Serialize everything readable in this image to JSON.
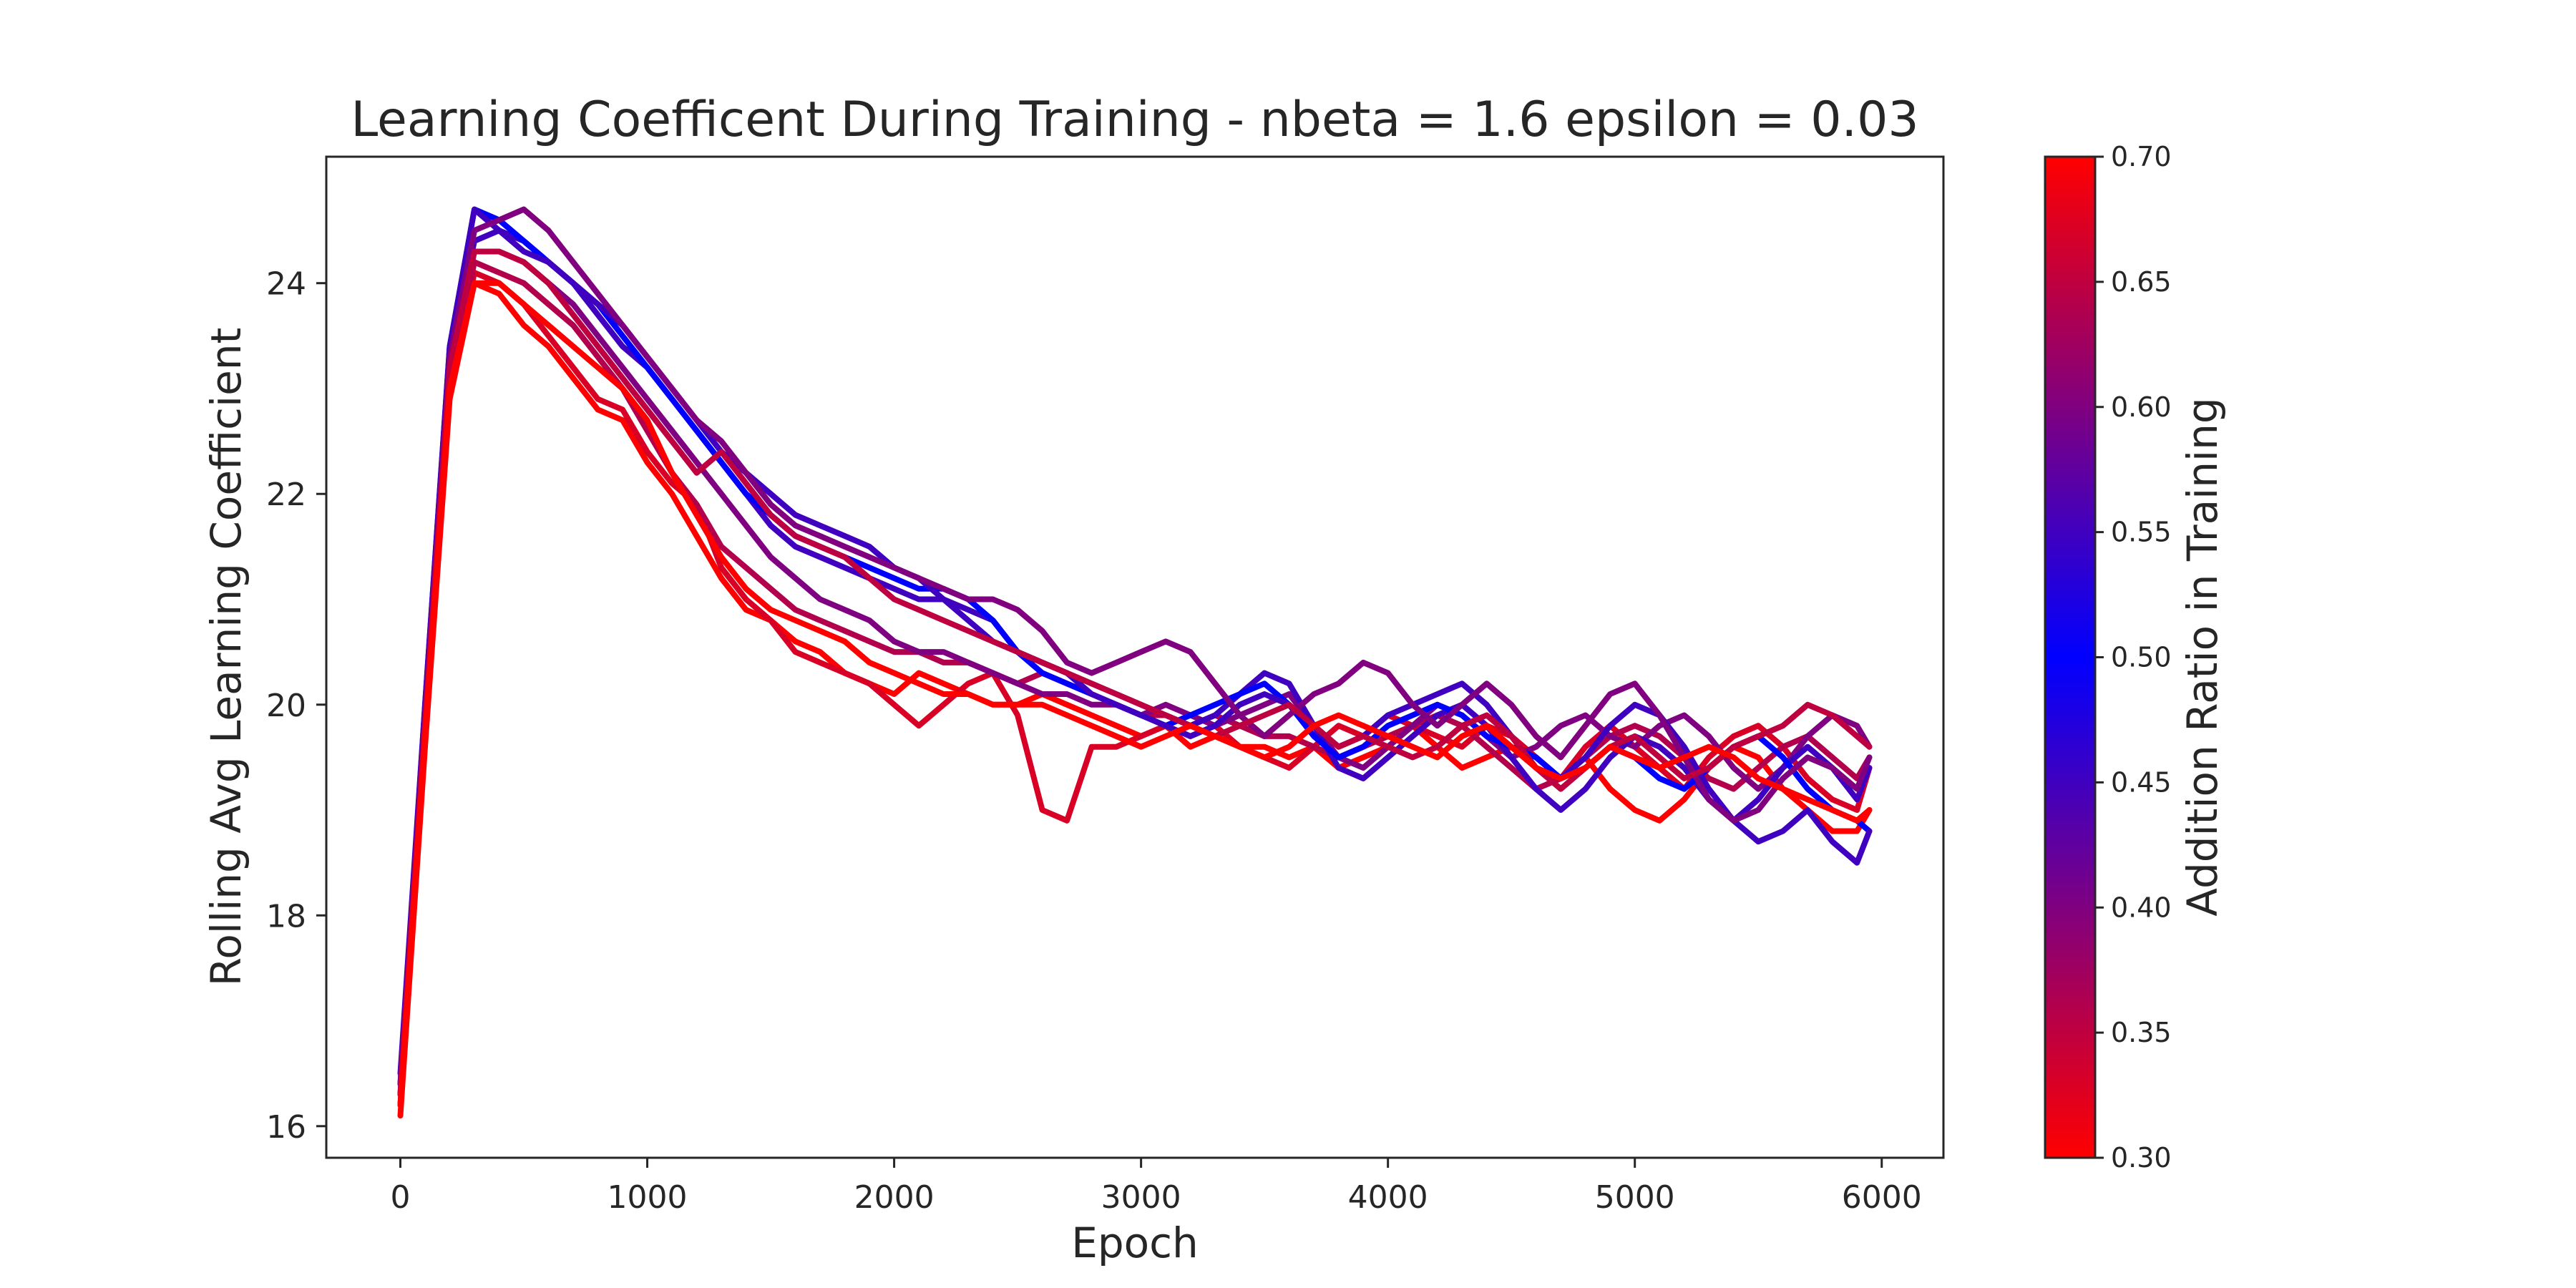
{
  "chart_data": {
    "type": "line",
    "title": "Learning Coefficent During Training - nbeta = 1.6 epsilon = 0.03",
    "xlabel": "Epoch",
    "ylabel": "Rolling Avg Learning Coefficient",
    "xlim": [
      -300,
      6250
    ],
    "ylim": [
      15.7,
      25.2
    ],
    "xticks": [
      0,
      1000,
      2000,
      3000,
      4000,
      5000,
      6000
    ],
    "yticks": [
      16,
      18,
      20,
      22,
      24
    ],
    "grid": false,
    "legend": "none",
    "colorbar": {
      "label": "Addition Ratio in Training",
      "range": [
        0.3,
        0.7
      ],
      "ticks": [
        "0.30",
        "0.35",
        "0.40",
        "0.45",
        "0.50",
        "0.55",
        "0.60",
        "0.65",
        "0.70"
      ],
      "colors": [
        "#ff0000",
        "#0000ff",
        "#ff0000"
      ]
    },
    "x": [
      0,
      100,
      200,
      300,
      400,
      500,
      600,
      700,
      800,
      900,
      1000,
      1100,
      1200,
      1300,
      1400,
      1500,
      1600,
      1700,
      1800,
      1900,
      2000,
      2100,
      2200,
      2300,
      2400,
      2500,
      2600,
      2700,
      2800,
      2900,
      3000,
      3100,
      3200,
      3300,
      3400,
      3500,
      3600,
      3700,
      3800,
      3900,
      4000,
      4100,
      4200,
      4300,
      4400,
      4500,
      4600,
      4700,
      4800,
      4900,
      5000,
      5100,
      5200,
      5300,
      5400,
      5500,
      5600,
      5700,
      5800,
      5900,
      5950
    ],
    "series": [
      {
        "ratio": 0.3,
        "values": [
          16.1,
          19.6,
          22.9,
          24.0,
          23.9,
          23.6,
          23.4,
          23.1,
          22.8,
          22.7,
          22.3,
          22.0,
          21.6,
          21.2,
          20.9,
          20.8,
          20.6,
          20.5,
          20.3,
          20.2,
          20.1,
          20.3,
          20.2,
          20.1,
          20.0,
          20.0,
          20.1,
          20.0,
          19.9,
          19.8,
          19.7,
          19.8,
          19.6,
          19.7,
          19.6,
          19.6,
          19.5,
          19.6,
          19.4,
          19.5,
          19.6,
          19.8,
          19.6,
          19.4,
          19.5,
          19.6,
          19.4,
          19.3,
          19.5,
          19.2,
          19.0,
          18.9,
          19.1,
          19.4,
          19.6,
          19.5,
          19.2,
          19.0,
          18.8,
          18.8,
          19.0
        ]
      },
      {
        "ratio": 0.33,
        "values": [
          16.2,
          19.7,
          23.0,
          24.1,
          24.0,
          23.8,
          23.5,
          23.2,
          22.9,
          22.8,
          22.4,
          22.1,
          21.9,
          21.3,
          21.0,
          20.8,
          20.5,
          20.4,
          20.3,
          20.2,
          20.0,
          19.8,
          20.0,
          20.2,
          20.3,
          19.9,
          19.0,
          18.9,
          19.6,
          19.6,
          19.7,
          19.8,
          19.7,
          19.8,
          19.6,
          19.5,
          19.4,
          19.6,
          19.8,
          19.7,
          19.9,
          19.8,
          19.7,
          19.6,
          19.8,
          19.7,
          19.5,
          19.3,
          19.6,
          19.8,
          19.6,
          19.4,
          19.2,
          19.5,
          19.7,
          19.8,
          19.6,
          19.3,
          19.1,
          19.0,
          19.4
        ]
      },
      {
        "ratio": 0.36,
        "values": [
          16.2,
          19.8,
          23.1,
          24.2,
          24.1,
          24.0,
          23.8,
          23.6,
          23.3,
          23.0,
          22.6,
          22.2,
          21.9,
          21.5,
          21.3,
          21.1,
          20.9,
          20.8,
          20.7,
          20.6,
          20.5,
          20.5,
          20.4,
          20.4,
          20.3,
          20.2,
          20.3,
          20.2,
          20.1,
          20.0,
          19.9,
          19.9,
          19.8,
          19.9,
          19.8,
          19.7,
          19.7,
          19.6,
          19.5,
          19.6,
          19.7,
          19.8,
          19.9,
          19.8,
          19.6,
          19.4,
          19.2,
          19.3,
          19.5,
          19.7,
          19.8,
          19.7,
          19.5,
          19.3,
          19.2,
          19.4,
          19.6,
          19.7,
          19.5,
          19.3,
          19.5
        ]
      },
      {
        "ratio": 0.4,
        "values": [
          16.3,
          19.8,
          23.2,
          24.3,
          24.3,
          24.2,
          24.0,
          23.8,
          23.5,
          23.2,
          22.9,
          22.6,
          22.3,
          22.0,
          21.7,
          21.4,
          21.2,
          21.0,
          20.9,
          20.8,
          20.6,
          20.5,
          20.5,
          20.4,
          20.3,
          20.2,
          20.1,
          20.1,
          20.0,
          20.0,
          19.9,
          20.0,
          19.9,
          19.8,
          19.9,
          20.0,
          20.1,
          19.8,
          19.5,
          19.4,
          19.6,
          19.8,
          20.0,
          19.9,
          19.7,
          19.5,
          19.6,
          19.8,
          19.9,
          19.7,
          19.6,
          19.8,
          19.9,
          19.7,
          19.4,
          19.2,
          19.4,
          19.7,
          19.9,
          19.8,
          19.6
        ]
      },
      {
        "ratio": 0.45,
        "values": [
          16.3,
          19.9,
          23.3,
          24.4,
          24.5,
          24.4,
          24.2,
          24.0,
          23.7,
          23.4,
          23.2,
          22.9,
          22.6,
          22.3,
          22.0,
          21.7,
          21.5,
          21.4,
          21.3,
          21.2,
          21.1,
          21.0,
          21.0,
          20.9,
          20.8,
          20.5,
          20.4,
          20.3,
          20.2,
          20.1,
          20.0,
          19.9,
          19.8,
          19.9,
          20.1,
          20.3,
          20.2,
          19.8,
          19.4,
          19.3,
          19.5,
          19.7,
          19.9,
          20.0,
          19.8,
          19.5,
          19.2,
          19.0,
          19.2,
          19.5,
          19.7,
          19.6,
          19.4,
          19.1,
          18.9,
          19.1,
          19.4,
          19.6,
          19.4,
          19.1,
          19.4
        ]
      },
      {
        "ratio": 0.5,
        "values": [
          16.4,
          20.0,
          23.4,
          24.7,
          24.6,
          24.4,
          24.2,
          24.0,
          23.8,
          23.5,
          23.2,
          22.9,
          22.6,
          22.3,
          22.0,
          21.8,
          21.6,
          21.5,
          21.4,
          21.3,
          21.2,
          21.1,
          21.1,
          21.0,
          20.8,
          20.5,
          20.3,
          20.2,
          20.1,
          20.0,
          19.9,
          19.8,
          19.9,
          20.0,
          20.1,
          20.2,
          20.0,
          19.7,
          19.5,
          19.6,
          19.8,
          19.9,
          20.0,
          19.9,
          19.7,
          19.6,
          19.5,
          19.3,
          19.4,
          19.6,
          19.5,
          19.3,
          19.2,
          19.4,
          19.6,
          19.7,
          19.5,
          19.2,
          19.0,
          18.9,
          18.8
        ]
      },
      {
        "ratio": 0.55,
        "values": [
          16.5,
          20.0,
          23.4,
          24.7,
          24.5,
          24.3,
          24.2,
          24.0,
          23.8,
          23.6,
          23.3,
          23.0,
          22.7,
          22.4,
          22.2,
          22.0,
          21.8,
          21.7,
          21.6,
          21.5,
          21.3,
          21.2,
          21.0,
          20.8,
          20.6,
          20.5,
          20.4,
          20.3,
          20.1,
          20.0,
          19.9,
          19.8,
          19.7,
          19.8,
          20.0,
          20.1,
          20.0,
          19.8,
          19.6,
          19.7,
          19.9,
          20.0,
          20.1,
          20.2,
          20.0,
          19.7,
          19.4,
          19.3,
          19.5,
          19.8,
          20.0,
          19.9,
          19.6,
          19.2,
          18.9,
          18.7,
          18.8,
          19.0,
          18.7,
          18.5,
          18.8
        ]
      },
      {
        "ratio": 0.6,
        "values": [
          16.4,
          19.9,
          23.3,
          24.5,
          24.6,
          24.7,
          24.5,
          24.2,
          23.9,
          23.6,
          23.3,
          23.0,
          22.7,
          22.5,
          22.2,
          21.9,
          21.7,
          21.6,
          21.5,
          21.4,
          21.3,
          21.2,
          21.1,
          21.0,
          21.0,
          20.9,
          20.7,
          20.4,
          20.3,
          20.4,
          20.5,
          20.6,
          20.5,
          20.2,
          19.9,
          19.7,
          19.9,
          20.1,
          20.2,
          20.4,
          20.3,
          20.0,
          19.8,
          20.0,
          20.2,
          20.0,
          19.7,
          19.5,
          19.8,
          20.1,
          20.2,
          19.9,
          19.5,
          19.1,
          18.9,
          19.0,
          19.3,
          19.5,
          19.4,
          19.2,
          19.5
        ]
      },
      {
        "ratio": 0.65,
        "values": [
          16.3,
          19.8,
          23.2,
          24.3,
          24.3,
          24.2,
          24.0,
          23.7,
          23.4,
          23.1,
          22.8,
          22.5,
          22.2,
          22.4,
          22.1,
          21.8,
          21.6,
          21.5,
          21.4,
          21.2,
          21.0,
          20.9,
          20.8,
          20.7,
          20.6,
          20.5,
          20.4,
          20.3,
          20.2,
          20.1,
          20.0,
          19.9,
          19.8,
          19.7,
          19.8,
          19.9,
          20.0,
          19.8,
          19.6,
          19.7,
          19.6,
          19.5,
          19.6,
          19.8,
          19.9,
          19.7,
          19.4,
          19.2,
          19.4,
          19.6,
          19.7,
          19.5,
          19.3,
          19.4,
          19.6,
          19.7,
          19.8,
          20.0,
          19.9,
          19.7,
          19.6
        ]
      },
      {
        "ratio": 0.7,
        "values": [
          16.2,
          19.7,
          23.0,
          24.0,
          24.0,
          23.8,
          23.6,
          23.4,
          23.2,
          23.0,
          22.7,
          22.2,
          21.8,
          21.4,
          21.1,
          20.9,
          20.8,
          20.7,
          20.6,
          20.4,
          20.3,
          20.2,
          20.1,
          20.1,
          20.0,
          20.0,
          20.0,
          19.9,
          19.8,
          19.7,
          19.6,
          19.7,
          19.8,
          19.7,
          19.6,
          19.5,
          19.6,
          19.8,
          19.9,
          19.8,
          19.7,
          19.6,
          19.5,
          19.7,
          19.8,
          19.6,
          19.4,
          19.3,
          19.4,
          19.6,
          19.5,
          19.4,
          19.5,
          19.6,
          19.5,
          19.3,
          19.2,
          19.1,
          19.0,
          18.9,
          19.0
        ]
      }
    ]
  }
}
